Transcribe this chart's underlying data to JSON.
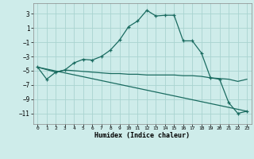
{
  "xlabel": "Humidex (Indice chaleur)",
  "background_color": "#ceecea",
  "grid_color": "#aad4d0",
  "line_color": "#1a6b60",
  "xlim": [
    -0.5,
    23.5
  ],
  "ylim": [
    -12.5,
    4.5
  ],
  "yticks": [
    3,
    1,
    -1,
    -3,
    -5,
    -7,
    -9,
    -11
  ],
  "xticks": [
    0,
    1,
    2,
    3,
    4,
    5,
    6,
    7,
    8,
    9,
    10,
    11,
    12,
    13,
    14,
    15,
    16,
    17,
    18,
    19,
    20,
    21,
    22,
    23
  ],
  "curve1_x": [
    0,
    1,
    2,
    3,
    4,
    5,
    6,
    7,
    8,
    9,
    10,
    11,
    12,
    13,
    14,
    15,
    16,
    17,
    18,
    19,
    20,
    21,
    22,
    23
  ],
  "curve1_y": [
    -4.5,
    -6.2,
    -5.2,
    -4.9,
    -3.9,
    -3.4,
    -3.5,
    -3.0,
    -2.1,
    -0.7,
    1.2,
    2.0,
    3.5,
    2.7,
    2.8,
    2.8,
    -0.8,
    -0.8,
    -2.5,
    -6.0,
    -6.2,
    -9.5,
    -11.0,
    -10.7
  ],
  "curve2_x": [
    0,
    2,
    3,
    4,
    5,
    6,
    7,
    8,
    9,
    10,
    11,
    12,
    13,
    14,
    15,
    16,
    17,
    18,
    19,
    20,
    21,
    22,
    23
  ],
  "curve2_y": [
    -4.5,
    -5.2,
    -4.9,
    -5.0,
    -5.1,
    -5.2,
    -5.3,
    -5.4,
    -5.4,
    -5.5,
    -5.5,
    -5.6,
    -5.6,
    -5.6,
    -5.6,
    -5.7,
    -5.7,
    -5.8,
    -6.0,
    -6.1,
    -6.2,
    -6.5,
    -6.2
  ],
  "curve3_x": [
    0,
    23
  ],
  "curve3_y": [
    -4.5,
    -10.7
  ]
}
